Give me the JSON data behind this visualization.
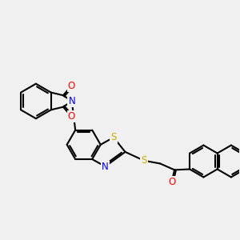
{
  "bg_color": "#f0f0f0",
  "bond_color": "#000000",
  "bond_width": 1.5,
  "atom_colors": {
    "N": "#0000ff",
    "O": "#ff0000",
    "S": "#ccaa00",
    "C": "#000000"
  },
  "font_size": 8.5
}
